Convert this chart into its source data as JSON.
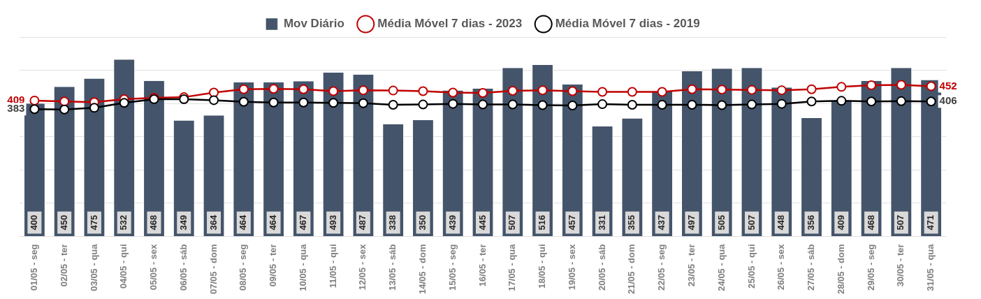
{
  "chart_data": {
    "type": "bar",
    "categories": [
      "01/05 - seg",
      "02/05 - ter",
      "03/05 - qua",
      "04/05 - qui",
      "05/05 - sex",
      "06/05 - sáb",
      "07/05 - dom",
      "08/05 - seg",
      "09/05 - ter",
      "10/05 - qua",
      "11/05 - qui",
      "12/05 - sex",
      "13/05 - sáb",
      "14/05 - dom",
      "15/05 - seg",
      "16/05 - ter",
      "17/05 - qua",
      "18/05 - qui",
      "19/05 - sex",
      "20/05 - sáb",
      "21/05 - dom",
      "22/05 - seg",
      "23/05 - ter",
      "24/05 - qua",
      "25/05 - qui",
      "26/05 - sex",
      "27/05 - sáb",
      "28/05 - dom",
      "29/05 - seg",
      "30/05 - ter",
      "31/05 - qua"
    ],
    "series": [
      {
        "name": "Mov Diário",
        "color": "#44546a",
        "data_labels": true,
        "values": [
          400,
          450,
          475,
          532,
          468,
          349,
          364,
          464,
          464,
          467,
          493,
          487,
          338,
          350,
          439,
          445,
          507,
          516,
          457,
          331,
          355,
          437,
          497,
          505,
          507,
          448,
          356,
          409,
          468,
          507,
          471
        ]
      },
      {
        "name": "Média Móvel 7 dias - 2023",
        "type": "line",
        "color": "#c00000",
        "marker": "circle",
        "values": [
          409,
          406,
          404,
          413,
          417,
          419,
          433,
          443,
          444,
          443,
          437,
          440,
          439,
          437,
          433,
          432,
          438,
          440,
          437,
          435,
          435,
          435,
          443,
          442,
          441,
          440,
          443,
          450,
          455,
          456,
          452
        ],
        "value_labels": [
          "409",
          null,
          null,
          null,
          null,
          null,
          null,
          null,
          null,
          null,
          null,
          null,
          null,
          null,
          null,
          null,
          null,
          null,
          null,
          null,
          null,
          null,
          null,
          null,
          null,
          null,
          null,
          null,
          null,
          null,
          "452"
        ]
      },
      {
        "name": "Média Móvel 7 dias - 2019",
        "type": "line",
        "color": "#000000",
        "marker": "circle",
        "values": [
          383,
          382,
          387,
          402,
          413,
          413,
          410,
          405,
          403,
          403,
          402,
          401,
          396,
          397,
          399,
          397,
          397,
          395,
          394,
          398,
          396,
          396,
          396,
          395,
          397,
          399,
          406,
          408,
          406,
          407,
          406
        ],
        "value_labels": [
          "383",
          null,
          null,
          null,
          null,
          null,
          null,
          null,
          null,
          null,
          null,
          null,
          null,
          null,
          null,
          null,
          null,
          null,
          null,
          null,
          null,
          null,
          null,
          null,
          null,
          null,
          null,
          null,
          null,
          null,
          "406"
        ]
      }
    ],
    "ylim": [
      0,
      600
    ],
    "yticks": [
      0,
      100,
      200,
      300,
      400,
      500,
      600
    ],
    "tick_labels": "x",
    "grid": "y",
    "legend": "top"
  }
}
